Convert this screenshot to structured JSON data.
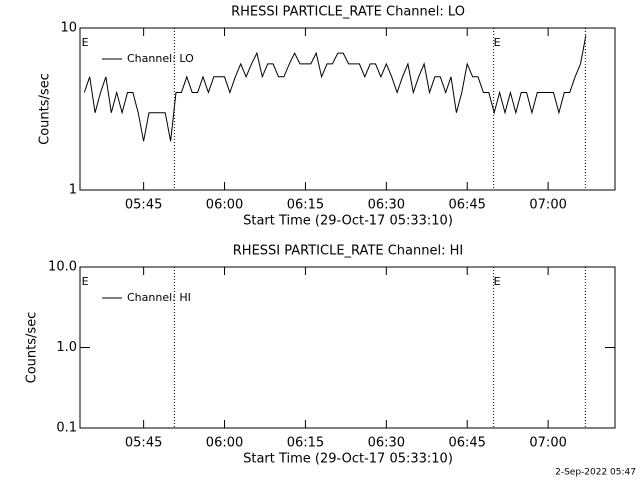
{
  "chart_data": [
    {
      "type": "line",
      "title": "RHESSI PARTICLE_RATE Channel: LO",
      "xlabel": "Start Time (29-Oct-17 05:33:10)",
      "ylabel": "Counts/sec",
      "log_y": true,
      "ylim": [
        1,
        10
      ],
      "yticks": [
        1,
        10
      ],
      "xlim": [
        333.2,
        432.4
      ],
      "xticks": [
        {
          "value": 345,
          "label": "05:45"
        },
        {
          "value": 360,
          "label": "06:00"
        },
        {
          "value": 375,
          "label": "06:15"
        },
        {
          "value": 390,
          "label": "06:30"
        },
        {
          "value": 405,
          "label": "06:45"
        },
        {
          "value": 420,
          "label": "07:00"
        }
      ],
      "legend": "upper left",
      "vlines": [
        350.7,
        409.9,
        426.9
      ],
      "annotations": [
        {
          "text": "E",
          "x": 333.5
        },
        {
          "text": "E",
          "x": 409.9
        }
      ],
      "series": [
        {
          "name": "Channel: LO",
          "color": "#000000",
          "x": [
            334,
            335,
            336,
            337,
            338,
            339,
            340,
            341,
            342,
            343,
            344,
            345,
            346,
            347,
            348,
            349,
            350,
            351,
            352,
            353,
            354,
            355,
            356,
            357,
            358,
            359,
            360,
            361,
            362,
            363,
            364,
            365,
            366,
            367,
            368,
            369,
            370,
            371,
            372,
            373,
            374,
            375,
            376,
            377,
            378,
            379,
            380,
            381,
            382,
            383,
            384,
            385,
            386,
            387,
            388,
            389,
            390,
            391,
            392,
            393,
            394,
            395,
            396,
            397,
            398,
            399,
            400,
            401,
            402,
            403,
            404,
            405,
            406,
            407,
            408,
            409,
            410,
            411,
            412,
            413,
            414,
            415,
            416,
            417,
            418,
            419,
            420,
            421,
            422,
            423,
            424,
            425,
            426,
            427
          ],
          "values": [
            4,
            5,
            3,
            4,
            5,
            3,
            4,
            3,
            4,
            4,
            3,
            2,
            3,
            3,
            3,
            3,
            2,
            4,
            4,
            5,
            4,
            4,
            5,
            4,
            5,
            5,
            5,
            4,
            5,
            6,
            5,
            6,
            7,
            5,
            6,
            6,
            5,
            5,
            6,
            7,
            6,
            6,
            6,
            7,
            5,
            6,
            6,
            7,
            7,
            6,
            6,
            6,
            5,
            6,
            6,
            5,
            6,
            5,
            4,
            5,
            6,
            4,
            5,
            6,
            4,
            5,
            5,
            4,
            5,
            3,
            4,
            6,
            5,
            5,
            4,
            4,
            3,
            4,
            3,
            4,
            3,
            4,
            4,
            3,
            4,
            4,
            4,
            4,
            3,
            4,
            4,
            5,
            6,
            9
          ]
        }
      ]
    },
    {
      "type": "line",
      "title": "RHESSI PARTICLE_RATE Channel: HI",
      "xlabel": "Start Time (29-Oct-17 05:33:10)",
      "ylabel": "Counts/sec",
      "log_y": true,
      "ylim": [
        0.1,
        10
      ],
      "yticks": [
        0.1,
        {
          "value": 1,
          "label": "1.0"
        },
        {
          "value": 10,
          "label": "10.0"
        }
      ],
      "xlim": [
        333.2,
        432.4
      ],
      "xticks": [
        {
          "value": 345,
          "label": "05:45"
        },
        {
          "value": 360,
          "label": "06:00"
        },
        {
          "value": 375,
          "label": "06:15"
        },
        {
          "value": 390,
          "label": "06:30"
        },
        {
          "value": 405,
          "label": "06:45"
        },
        {
          "value": 420,
          "label": "07:00"
        }
      ],
      "legend": "upper left",
      "vlines": [
        350.7,
        409.9,
        426.9
      ],
      "annotations": [
        {
          "text": "E",
          "x": 333.5
        },
        {
          "text": "E",
          "x": 409.9
        }
      ],
      "series": [
        {
          "name": "Channel: HI",
          "color": "#000000",
          "x": [],
          "values": []
        }
      ]
    }
  ],
  "footer": "2-Sep-2022 05:47"
}
